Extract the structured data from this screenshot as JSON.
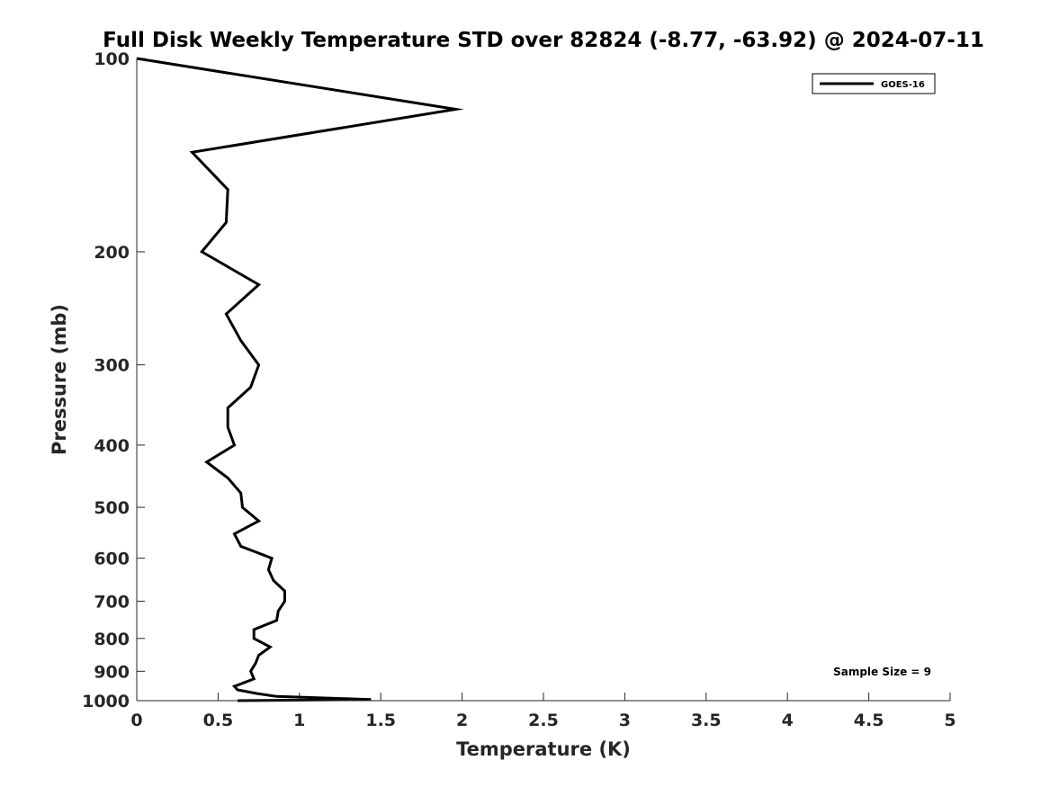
{
  "chart_data": {
    "type": "line",
    "title": "Full Disk Weekly Temperature STD over 82824 (-8.77, -63.92) @ 2024-07-11",
    "xlabel": "Temperature (K)",
    "ylabel": "Pressure (mb)",
    "xlim": [
      0,
      5
    ],
    "ylim": [
      100,
      1000
    ],
    "yscale": "log",
    "yreversed": true,
    "grid": false,
    "x_ticks": [
      0,
      0.5,
      1,
      1.5,
      2,
      2.5,
      3,
      3.5,
      4,
      4.5,
      5
    ],
    "x_tick_labels": [
      "0",
      "0.5",
      "1",
      "1.5",
      "2",
      "2.5",
      "3",
      "3.5",
      "4",
      "4.5",
      "5"
    ],
    "y_ticks": [
      100,
      200,
      300,
      400,
      500,
      600,
      700,
      800,
      900,
      1000
    ],
    "y_tick_labels": [
      "100",
      "200",
      "300",
      "400",
      "500",
      "600",
      "700",
      "800",
      "900",
      "1000"
    ],
    "legend_position": "top-right",
    "series": [
      {
        "name": "GOES-16",
        "color": "#000000",
        "points": [
          [
            0.0,
            100
          ],
          [
            1.96,
            120
          ],
          [
            0.34,
            140
          ],
          [
            0.56,
            160
          ],
          [
            0.55,
            180
          ],
          [
            0.4,
            200
          ],
          [
            0.75,
            225
          ],
          [
            0.55,
            250
          ],
          [
            0.64,
            275
          ],
          [
            0.75,
            300
          ],
          [
            0.7,
            325
          ],
          [
            0.56,
            350
          ],
          [
            0.56,
            375
          ],
          [
            0.6,
            400
          ],
          [
            0.43,
            425
          ],
          [
            0.56,
            450
          ],
          [
            0.64,
            475
          ],
          [
            0.65,
            500
          ],
          [
            0.75,
            525
          ],
          [
            0.6,
            550
          ],
          [
            0.64,
            575
          ],
          [
            0.83,
            600
          ],
          [
            0.81,
            625
          ],
          [
            0.84,
            650
          ],
          [
            0.91,
            675
          ],
          [
            0.91,
            700
          ],
          [
            0.87,
            725
          ],
          [
            0.86,
            750
          ],
          [
            0.72,
            775
          ],
          [
            0.72,
            800
          ],
          [
            0.82,
            825
          ],
          [
            0.75,
            850
          ],
          [
            0.73,
            875
          ],
          [
            0.7,
            900
          ],
          [
            0.72,
            925
          ],
          [
            0.6,
            950
          ],
          [
            0.62,
            962
          ],
          [
            0.74,
            975
          ],
          [
            0.86,
            985
          ],
          [
            1.28,
            993
          ],
          [
            1.44,
            996
          ],
          [
            0.62,
            1000
          ]
        ]
      }
    ],
    "annotation": "Sample Size = 9"
  }
}
